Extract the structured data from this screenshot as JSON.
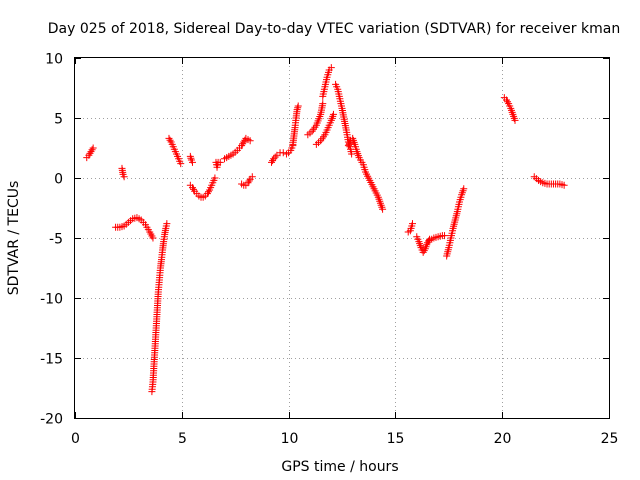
{
  "chart_data": {
    "type": "scatter",
    "title": "Day 025 of 2018, Sidereal Day-to-day VTEC variation (SDTVAR) for receiver kman",
    "xlabel": "GPS time / hours",
    "ylabel": "SDTVAR / TECUs",
    "xlim": [
      0,
      25
    ],
    "ylim": [
      -20,
      10
    ],
    "xticks": [
      0,
      5,
      10,
      15,
      20,
      25
    ],
    "yticks": [
      -20,
      -15,
      -10,
      -5,
      0,
      5,
      10
    ],
    "grid": true,
    "marker": "+",
    "marker_color": "#ff0000",
    "segments": [
      {
        "name": "seg-01",
        "points": [
          [
            0.55,
            1.7
          ],
          [
            0.65,
            1.9
          ],
          [
            0.75,
            2.2
          ],
          [
            0.85,
            2.5
          ]
        ]
      },
      {
        "name": "seg-02",
        "points": [
          [
            2.2,
            0.8
          ],
          [
            2.25,
            0.3
          ],
          [
            2.3,
            0.1
          ]
        ]
      },
      {
        "name": "seg-03",
        "points": [
          [
            1.9,
            -4.1
          ],
          [
            2.1,
            -4.1
          ],
          [
            2.3,
            -4.0
          ],
          [
            2.5,
            -3.7
          ],
          [
            2.7,
            -3.4
          ],
          [
            2.9,
            -3.3
          ],
          [
            3.1,
            -3.5
          ],
          [
            3.3,
            -3.9
          ],
          [
            3.5,
            -4.5
          ],
          [
            3.65,
            -5.0
          ]
        ]
      },
      {
        "name": "seg-04",
        "points": [
          [
            3.6,
            -17.8
          ],
          [
            3.65,
            -17.0
          ],
          [
            3.7,
            -15.5
          ],
          [
            3.75,
            -14.0
          ],
          [
            3.8,
            -12.5
          ],
          [
            3.85,
            -11.0
          ],
          [
            3.9,
            -9.5
          ],
          [
            3.95,
            -8.5
          ],
          [
            4.0,
            -7.5
          ],
          [
            4.05,
            -6.8
          ],
          [
            4.1,
            -6.0
          ],
          [
            4.15,
            -5.3
          ],
          [
            4.2,
            -4.7
          ],
          [
            4.25,
            -4.2
          ],
          [
            4.3,
            -3.8
          ]
        ]
      },
      {
        "name": "seg-05",
        "points": [
          [
            4.4,
            3.3
          ],
          [
            4.5,
            3.0
          ],
          [
            4.6,
            2.6
          ],
          [
            4.7,
            2.2
          ],
          [
            4.8,
            1.8
          ],
          [
            4.9,
            1.4
          ],
          [
            4.95,
            1.2
          ]
        ]
      },
      {
        "name": "seg-06",
        "points": [
          [
            5.4,
            1.8
          ],
          [
            5.45,
            1.5
          ],
          [
            5.5,
            1.3
          ]
        ]
      },
      {
        "name": "seg-07",
        "points": [
          [
            5.4,
            -0.6
          ],
          [
            5.5,
            -0.8
          ],
          [
            5.6,
            -1.1
          ],
          [
            5.7,
            -1.3
          ],
          [
            5.8,
            -1.5
          ],
          [
            5.9,
            -1.6
          ],
          [
            6.0,
            -1.6
          ],
          [
            6.1,
            -1.5
          ],
          [
            6.2,
            -1.3
          ],
          [
            6.3,
            -1.0
          ],
          [
            6.4,
            -0.6
          ],
          [
            6.5,
            -0.2
          ],
          [
            6.55,
            0.0
          ]
        ]
      },
      {
        "name": "seg-08",
        "points": [
          [
            6.6,
            1.3
          ],
          [
            6.65,
            0.9
          ],
          [
            6.7,
            1.3
          ],
          [
            6.8,
            1.3
          ]
        ]
      },
      {
        "name": "seg-09",
        "points": [
          [
            7.0,
            1.6
          ],
          [
            7.2,
            1.8
          ],
          [
            7.4,
            2.0
          ],
          [
            7.6,
            2.3
          ],
          [
            7.8,
            2.7
          ],
          [
            7.9,
            3.0
          ],
          [
            8.0,
            3.3
          ],
          [
            8.2,
            3.1
          ]
        ]
      },
      {
        "name": "seg-10",
        "points": [
          [
            7.8,
            -0.5
          ],
          [
            7.9,
            -0.6
          ],
          [
            8.0,
            -0.6
          ],
          [
            8.1,
            -0.4
          ],
          [
            8.2,
            -0.1
          ],
          [
            8.3,
            0.1
          ]
        ]
      },
      {
        "name": "seg-11",
        "points": [
          [
            9.2,
            1.3
          ],
          [
            9.3,
            1.6
          ],
          [
            9.45,
            1.9
          ],
          [
            9.6,
            2.1
          ],
          [
            9.75,
            2.1
          ],
          [
            9.9,
            2.0
          ],
          [
            10.0,
            2.1
          ],
          [
            10.1,
            2.3
          ],
          [
            10.2,
            2.7
          ]
        ]
      },
      {
        "name": "seg-12",
        "points": [
          [
            10.2,
            2.8
          ],
          [
            10.25,
            3.5
          ],
          [
            10.3,
            4.2
          ],
          [
            10.35,
            5.0
          ],
          [
            10.4,
            5.7
          ],
          [
            10.45,
            6.0
          ]
        ]
      },
      {
        "name": "seg-13",
        "points": [
          [
            10.9,
            3.6
          ],
          [
            11.1,
            3.9
          ],
          [
            11.3,
            4.4
          ],
          [
            11.5,
            5.3
          ],
          [
            11.6,
            6.2
          ]
        ]
      },
      {
        "name": "seg-14",
        "points": [
          [
            11.3,
            2.8
          ],
          [
            11.5,
            3.1
          ],
          [
            11.7,
            3.6
          ],
          [
            11.8,
            4.0
          ],
          [
            11.9,
            4.4
          ],
          [
            12.0,
            4.8
          ],
          [
            12.1,
            5.3
          ]
        ]
      },
      {
        "name": "seg-15",
        "points": [
          [
            11.6,
            6.8
          ],
          [
            11.7,
            7.6
          ],
          [
            11.8,
            8.4
          ],
          [
            11.9,
            9.0
          ],
          [
            12.0,
            9.2
          ]
        ]
      },
      {
        "name": "seg-16",
        "points": [
          [
            12.2,
            7.8
          ],
          [
            12.3,
            7.4
          ],
          [
            12.4,
            6.6
          ],
          [
            12.5,
            5.8
          ],
          [
            12.6,
            4.9
          ],
          [
            12.7,
            4.0
          ],
          [
            12.8,
            3.0
          ],
          [
            12.9,
            2.4
          ],
          [
            12.95,
            2.0
          ]
        ]
      },
      {
        "name": "seg-17",
        "points": [
          [
            12.8,
            2.7
          ],
          [
            12.9,
            3.1
          ],
          [
            13.0,
            3.3
          ],
          [
            13.1,
            2.8
          ],
          [
            13.2,
            2.2
          ],
          [
            13.3,
            1.7
          ],
          [
            13.5,
            1.1
          ],
          [
            13.6,
            0.5
          ],
          [
            13.8,
            -0.2
          ],
          [
            14.0,
            -0.9
          ],
          [
            14.2,
            -1.6
          ],
          [
            14.3,
            -2.1
          ],
          [
            14.4,
            -2.6
          ]
        ]
      },
      {
        "name": "seg-18",
        "points": [
          [
            15.6,
            -4.5
          ],
          [
            15.7,
            -4.4
          ],
          [
            15.8,
            -3.8
          ]
        ]
      },
      {
        "name": "seg-19",
        "points": [
          [
            16.0,
            -4.9
          ],
          [
            16.1,
            -5.3
          ],
          [
            16.2,
            -5.8
          ],
          [
            16.3,
            -6.2
          ],
          [
            16.4,
            -5.9
          ],
          [
            16.5,
            -5.4
          ],
          [
            16.6,
            -5.1
          ]
        ]
      },
      {
        "name": "seg-20",
        "points": [
          [
            16.6,
            -5.2
          ],
          [
            16.8,
            -5.0
          ],
          [
            17.0,
            -4.9
          ],
          [
            17.2,
            -4.8
          ],
          [
            17.3,
            -4.8
          ]
        ]
      },
      {
        "name": "seg-21",
        "points": [
          [
            17.4,
            -6.5
          ],
          [
            17.5,
            -5.8
          ],
          [
            17.6,
            -5.0
          ],
          [
            17.7,
            -4.2
          ],
          [
            17.8,
            -3.5
          ],
          [
            17.9,
            -2.8
          ],
          [
            18.0,
            -2.0
          ],
          [
            18.1,
            -1.4
          ],
          [
            18.2,
            -0.9
          ]
        ]
      },
      {
        "name": "seg-22",
        "points": [
          [
            20.1,
            6.7
          ],
          [
            20.2,
            6.5
          ],
          [
            20.3,
            6.2
          ],
          [
            20.4,
            5.8
          ],
          [
            20.5,
            5.3
          ],
          [
            20.6,
            4.8
          ]
        ]
      },
      {
        "name": "seg-23",
        "points": [
          [
            21.5,
            0.1
          ],
          [
            21.7,
            -0.2
          ],
          [
            21.9,
            -0.4
          ],
          [
            22.1,
            -0.5
          ],
          [
            22.3,
            -0.5
          ],
          [
            22.5,
            -0.5
          ],
          [
            22.7,
            -0.5
          ],
          [
            22.9,
            -0.6
          ]
        ]
      }
    ]
  }
}
